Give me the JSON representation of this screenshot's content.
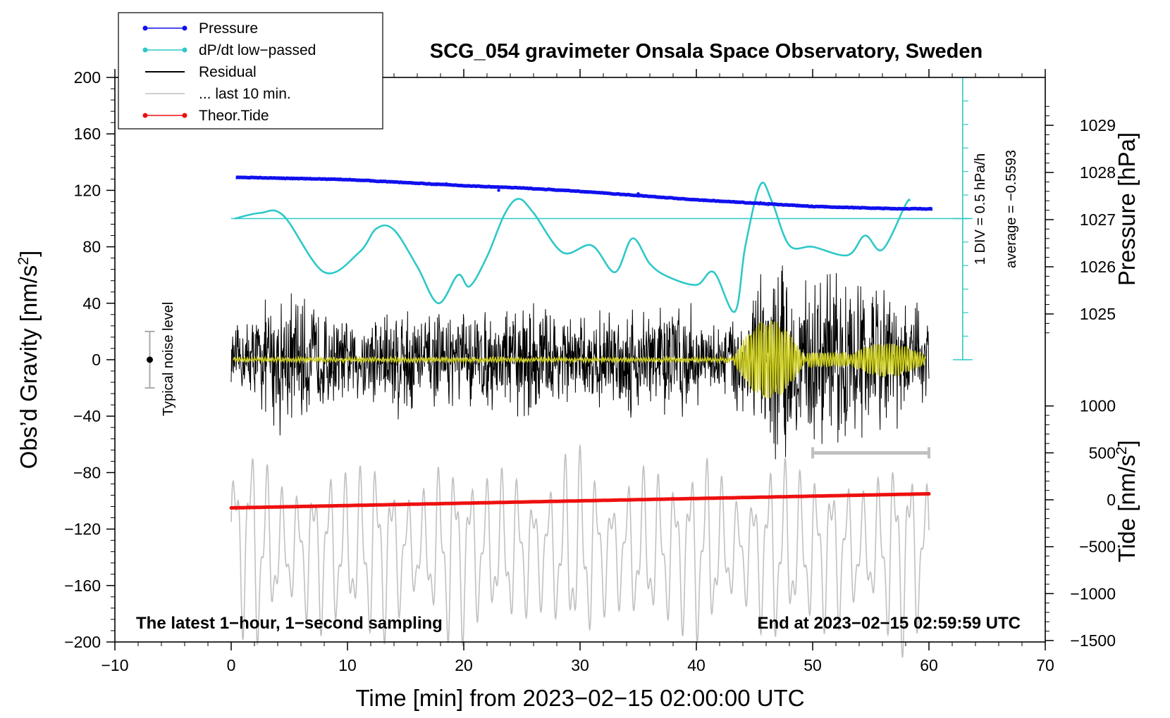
{
  "chart_data": {
    "type": "line",
    "title": "SCG_054 gravimeter Onsala Space Observatory, Sweden",
    "xlabel": "Time [min] from 2023−02−15 02:00:00 UTC",
    "ylabel_main": "Obs’d Gravity [nm/s",
    "ylabel_main_sup": "2",
    "ylabel_main_end": "]",
    "ylabel_pressure": "Pressure [hPa]",
    "ylabel_tide": "Tide [nm/s",
    "ylabel_tide_sup": "2",
    "ylabel_tide_end": "]",
    "xlim": [
      -10,
      70
    ],
    "ylim": [
      -200,
      200
    ],
    "xticks": [
      -10,
      0,
      10,
      20,
      30,
      40,
      50,
      60,
      70
    ],
    "xtick_labels": [
      "−10",
      "0",
      "10",
      "20",
      "30",
      "40",
      "50",
      "60",
      "70"
    ],
    "yticks": [
      200,
      160,
      120,
      80,
      40,
      0,
      -40,
      -80,
      -120,
      -160,
      -200
    ],
    "ytick_labels": [
      "200",
      "160",
      "120",
      "80",
      "40",
      "0",
      "−40",
      "−80",
      "−120",
      "−160",
      "−200"
    ],
    "pressure_axis": {
      "ticks": [
        1025,
        1026,
        1027,
        1028,
        1029
      ],
      "labels": [
        "1025",
        "1026",
        "1027",
        "1028",
        "1029"
      ],
      "ref_value": 1027
    },
    "tide_axis": {
      "ticks": [
        1000,
        500,
        0,
        -500,
        -1000,
        -1500
      ],
      "labels": [
        "1000",
        "500",
        "0",
        "−500",
        "−1000",
        "−1500"
      ]
    },
    "legend": [
      {
        "label": "Pressure",
        "color": "#1010ee",
        "marker": true
      },
      {
        "label": "dP/dt low−passed",
        "color": "#2ec8c8",
        "marker": true
      },
      {
        "label": "Residual",
        "color": "#000000",
        "marker": false
      },
      {
        "label": "... last 10 min.",
        "color": "#c0c0c0",
        "marker": false
      },
      {
        "label": "Theor.Tide",
        "color": "#ee1010",
        "marker": true
      }
    ],
    "series": [
      {
        "name": "Pressure",
        "color": "#1010ee",
        "x": [
          0,
          10,
          20,
          25,
          30,
          40,
          45,
          50,
          57,
          60
        ],
        "y": [
          1027.9,
          1027.85,
          1027.72,
          1027.67,
          1027.6,
          1027.42,
          1027.35,
          1027.28,
          1027.23,
          1027.23
        ]
      },
      {
        "name": "dP/dt low−passed",
        "color": "#2ec8c8",
        "x": [
          0.3,
          2.5,
          4.5,
          8,
          11,
          12.5,
          14,
          16,
          17.8,
          19.5,
          20.5,
          22,
          23.5,
          24.7,
          26,
          28.5,
          31,
          33,
          34.5,
          36,
          37.5,
          40,
          41.5,
          43.3,
          44.2,
          45.5,
          46.5,
          48,
          50,
          53,
          54.5,
          56,
          58,
          58.4
        ],
        "y": [
          100,
          104,
          102,
          62,
          76,
          93,
          92,
          66,
          40,
          60,
          52,
          73,
          103,
          114,
          104,
          76,
          81,
          62,
          86,
          68,
          59,
          53,
          62,
          34,
          80,
          124,
          112,
          81,
          80,
          74,
          88,
          78,
          110,
          113
        ]
      },
      {
        "name": "Residual",
        "color": "#000000",
        "x_range": [
          0,
          60
        ],
        "envelope": [
          [
            0,
            22
          ],
          [
            3.5,
            50
          ],
          [
            4,
            60
          ],
          [
            10,
            30
          ],
          [
            14.5,
            50
          ],
          [
            17,
            35
          ],
          [
            23,
            40
          ],
          [
            26,
            48
          ],
          [
            30,
            32
          ],
          [
            34.5,
            45
          ],
          [
            39.5,
            47
          ],
          [
            40.5,
            25
          ],
          [
            43,
            35
          ],
          [
            44.5,
            60
          ],
          [
            46,
            70
          ],
          [
            47.5,
            85
          ],
          [
            49,
            60
          ],
          [
            52,
            70
          ],
          [
            56,
            60
          ],
          [
            59.7,
            40
          ]
        ]
      },
      {
        "name": "... last 10 min.",
        "color": "#c0c0c0",
        "x_range": [
          0,
          60
        ],
        "center": -135,
        "amplitude": 45
      },
      {
        "name": "Theor.Tide",
        "color": "#ee1010",
        "x": [
          0,
          60
        ],
        "y": [
          -105,
          -95
        ]
      }
    ],
    "bar_last10": {
      "x": [
        50,
        60
      ],
      "y": -66
    },
    "noise_marker": {
      "x": -7,
      "y": 0,
      "err": 20,
      "label": "Typical noise level"
    },
    "dpdt_label": "1 DIV = 0.5 hPa/h",
    "average_label": "average = −0.5593",
    "bottom_left_note": "The latest 1−hour, 1−second sampling",
    "bottom_right_note": "End at 2023−02−15 02:59:59 UTC"
  }
}
